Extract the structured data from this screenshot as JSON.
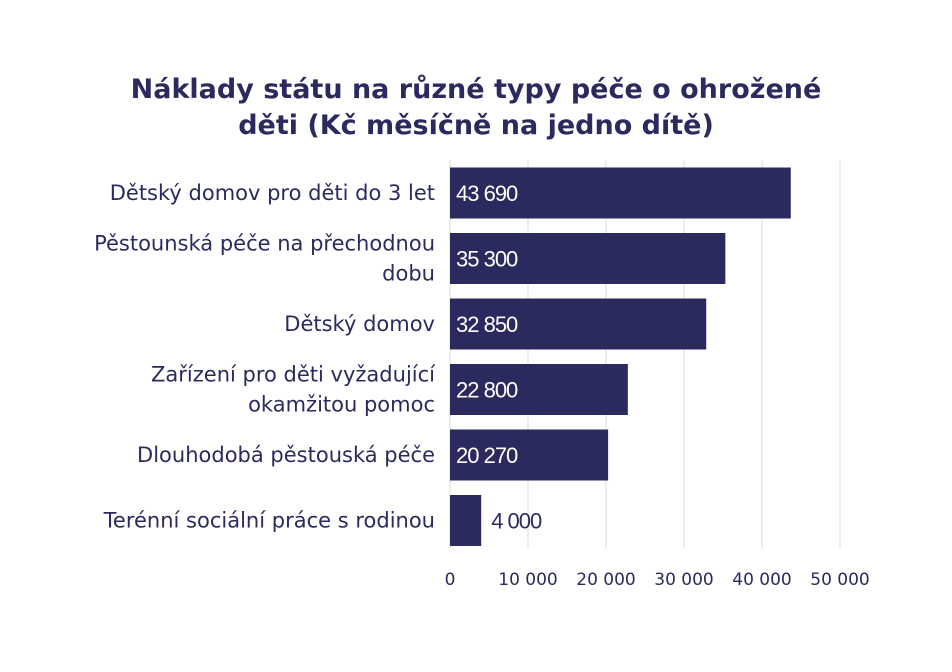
{
  "chart_data": {
    "type": "bar",
    "orientation": "horizontal",
    "title_lines": [
      "Náklady státu na různé typy péče o ohrožené",
      "děti (Kč měsíčně na jedno dítě)"
    ],
    "categories": [
      [
        "Dětský domov pro děti do 3 let"
      ],
      [
        "Pěstounská péče na přechodnou",
        "dobu"
      ],
      [
        "Dětský domov"
      ],
      [
        "Zařízení pro děti vyžadující",
        "okamžitou pomoc"
      ],
      [
        "Dlouhodobá pěstouská péče"
      ],
      [
        "Terénní sociální práce s rodinou"
      ]
    ],
    "values": [
      43690,
      35300,
      32850,
      22800,
      20270,
      4000
    ],
    "value_labels": [
      "43 690",
      "35 300",
      "32 850",
      "22 800",
      "20 270",
      "4 000"
    ],
    "xlim": [
      0,
      50000
    ],
    "xticks": [
      0,
      10000,
      20000,
      30000,
      40000,
      50000
    ],
    "xtick_labels": [
      "0",
      "10 000",
      "20 000",
      "30 000",
      "40 000",
      "50 000"
    ],
    "grid": "vertical",
    "legend": "none"
  },
  "colors": {
    "bar": "#2b2a5e",
    "text": "#2b2a5e",
    "grid": "#d9d9d9",
    "label_inside": "#ffffff"
  }
}
